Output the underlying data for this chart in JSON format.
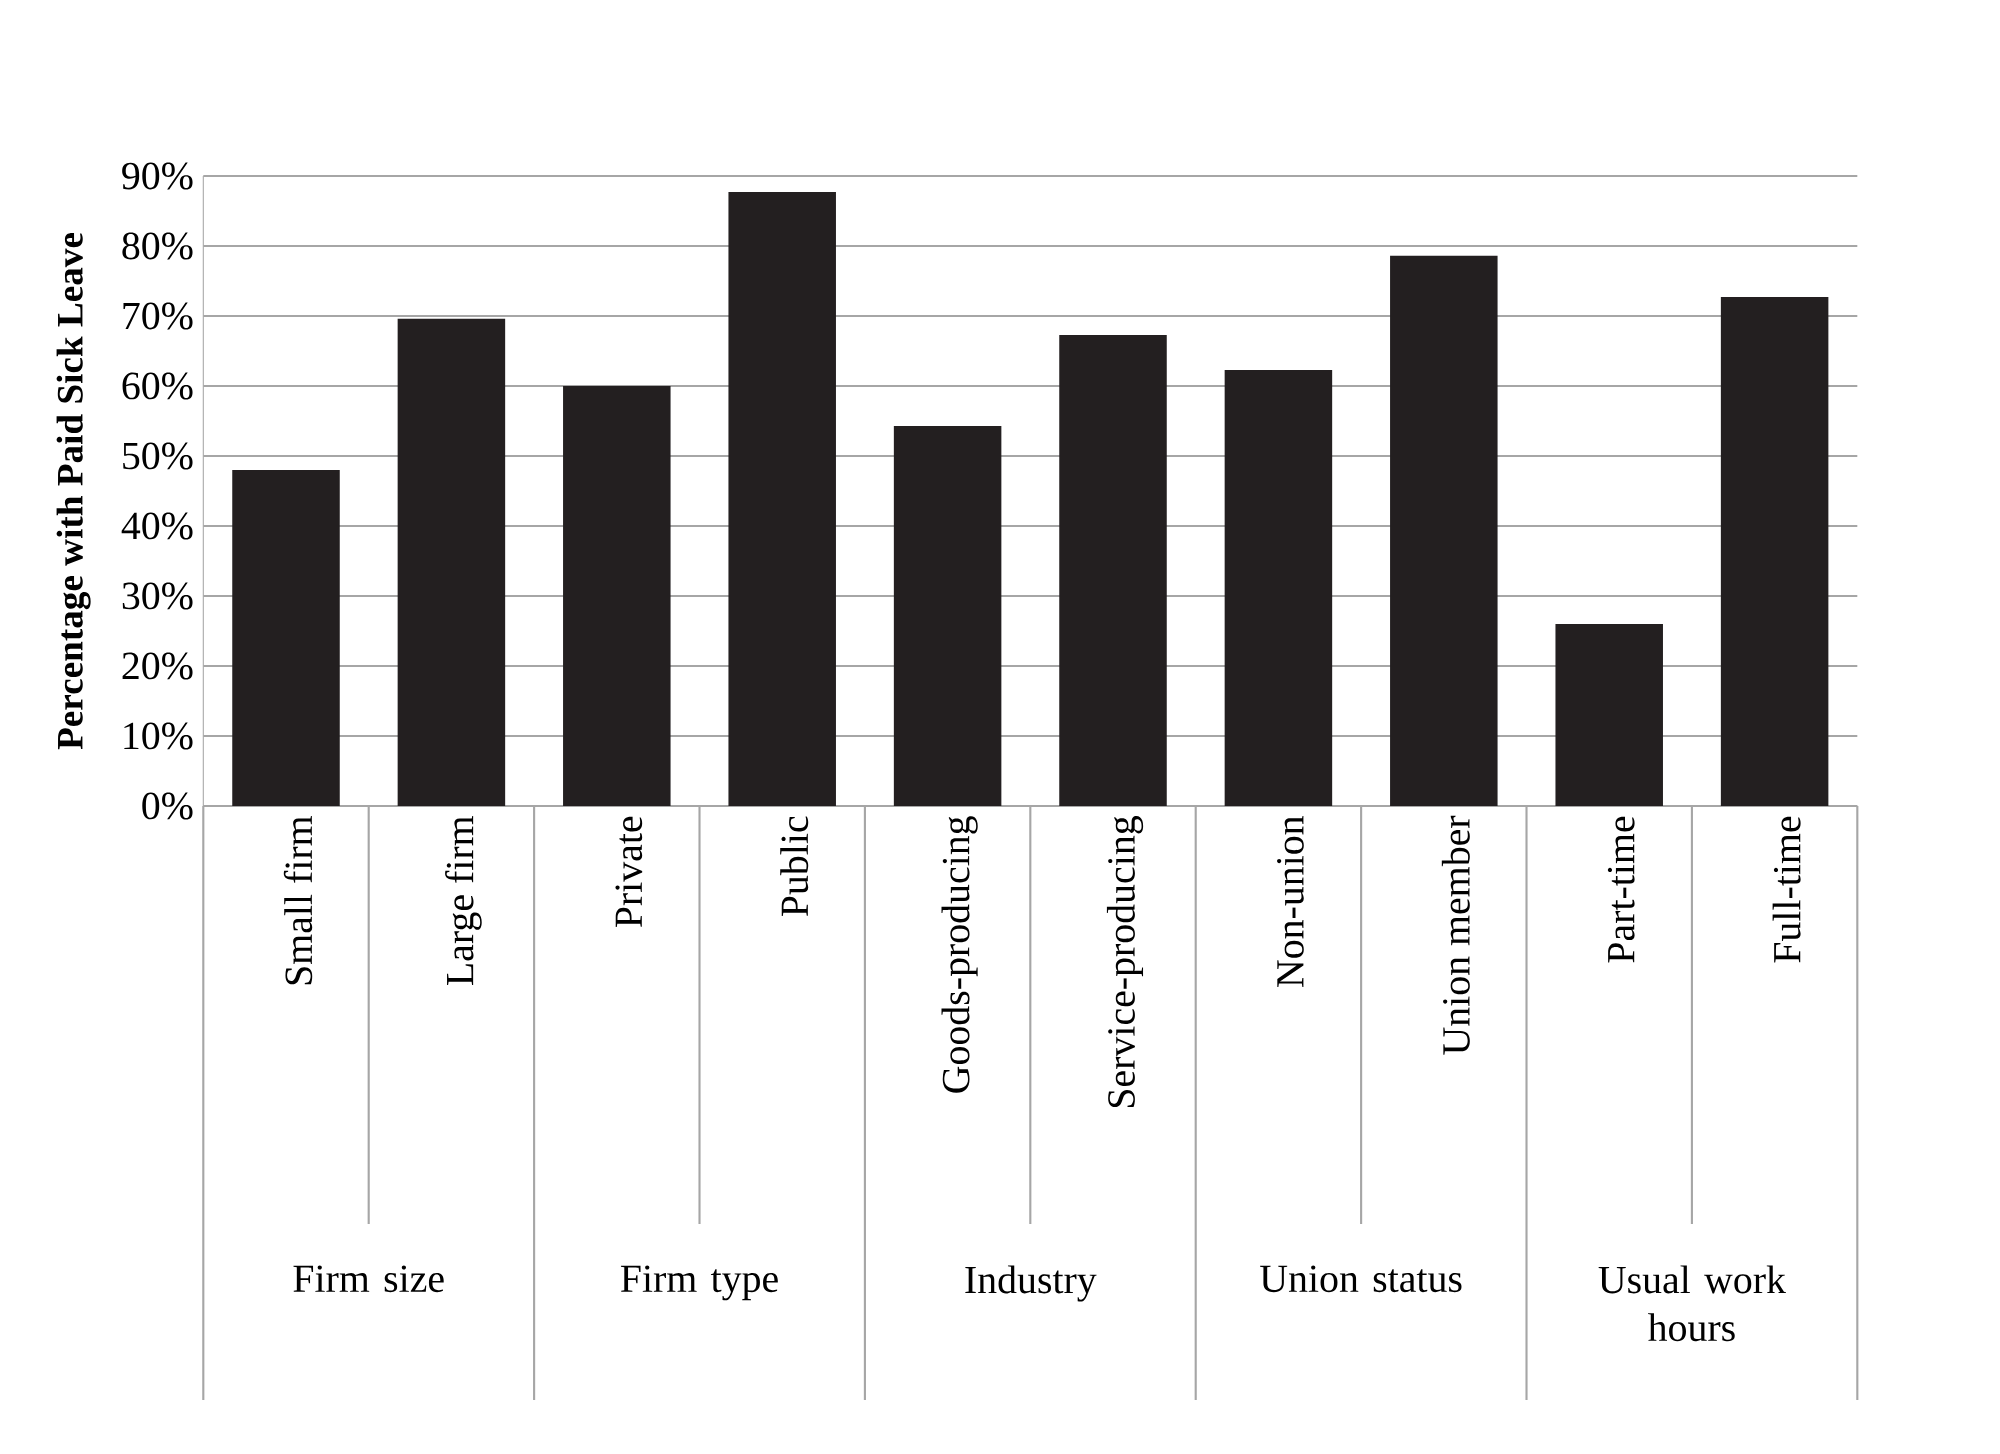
{
  "chart_data": {
    "type": "bar",
    "ylabel": "Percentage with Paid Sick Leave",
    "categories": [
      "Small firm",
      "Large firm",
      "Private",
      "Public",
      "Goods-producing",
      "Service-producing",
      "Non-union",
      "Union member",
      "Part-time",
      "Full-time"
    ],
    "values": [
      48,
      69.6,
      60,
      87.7,
      54.3,
      67.3,
      62.3,
      78.6,
      26,
      72.7
    ],
    "color": "#231f20",
    "ylim": [
      0,
      90
    ],
    "yticks": [
      {
        "value": 0,
        "label": "0%"
      },
      {
        "value": 10,
        "label": "10%"
      },
      {
        "value": 20,
        "label": "20%"
      },
      {
        "value": 30,
        "label": "30%"
      },
      {
        "value": 40,
        "label": "40%"
      },
      {
        "value": 50,
        "label": "50%"
      },
      {
        "value": 60,
        "label": "60%"
      },
      {
        "value": 70,
        "label": "70%"
      },
      {
        "value": 80,
        "label": "80%"
      },
      {
        "value": 90,
        "label": "90%"
      }
    ],
    "grid": "y",
    "annotations": [
      "Firm size",
      "Firm type",
      "Industry",
      "Union status",
      "Usual work hours"
    ]
  }
}
